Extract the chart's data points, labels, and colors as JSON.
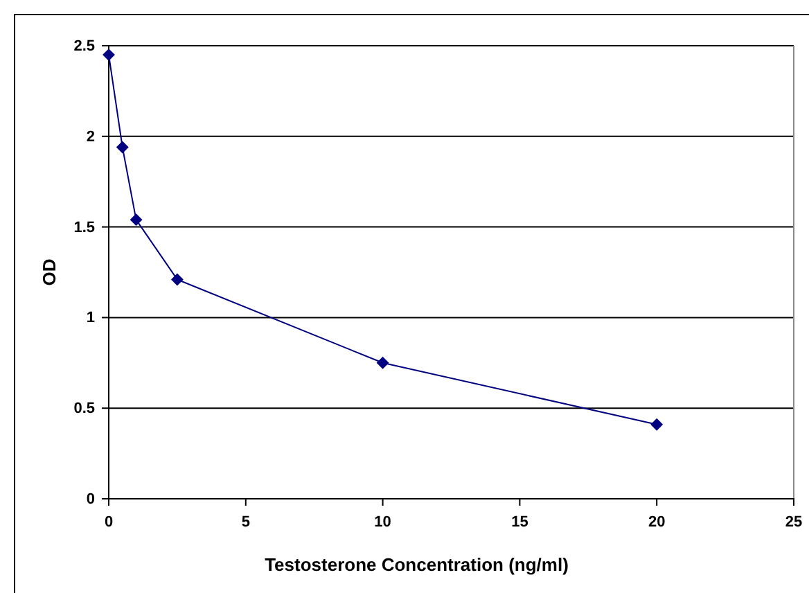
{
  "chart_data": {
    "type": "line",
    "xlabel": "Testosterone Concentration (ng/ml)",
    "ylabel": "OD",
    "x": [
      0,
      0.5,
      1,
      2.5,
      10,
      20
    ],
    "series": [
      {
        "color": "#000080",
        "values": [
          2.45,
          1.94,
          1.54,
          1.21,
          0.75,
          0.41
        ]
      }
    ],
    "xlim": [
      0,
      25
    ],
    "xticks": [
      0,
      5,
      10,
      15,
      20,
      25
    ],
    "ylim": [
      0,
      2.5
    ],
    "yticks": [
      0,
      0.5,
      1,
      1.5,
      2,
      2.5
    ],
    "grid": "y",
    "marker": "diamond",
    "line_style": "solid"
  }
}
